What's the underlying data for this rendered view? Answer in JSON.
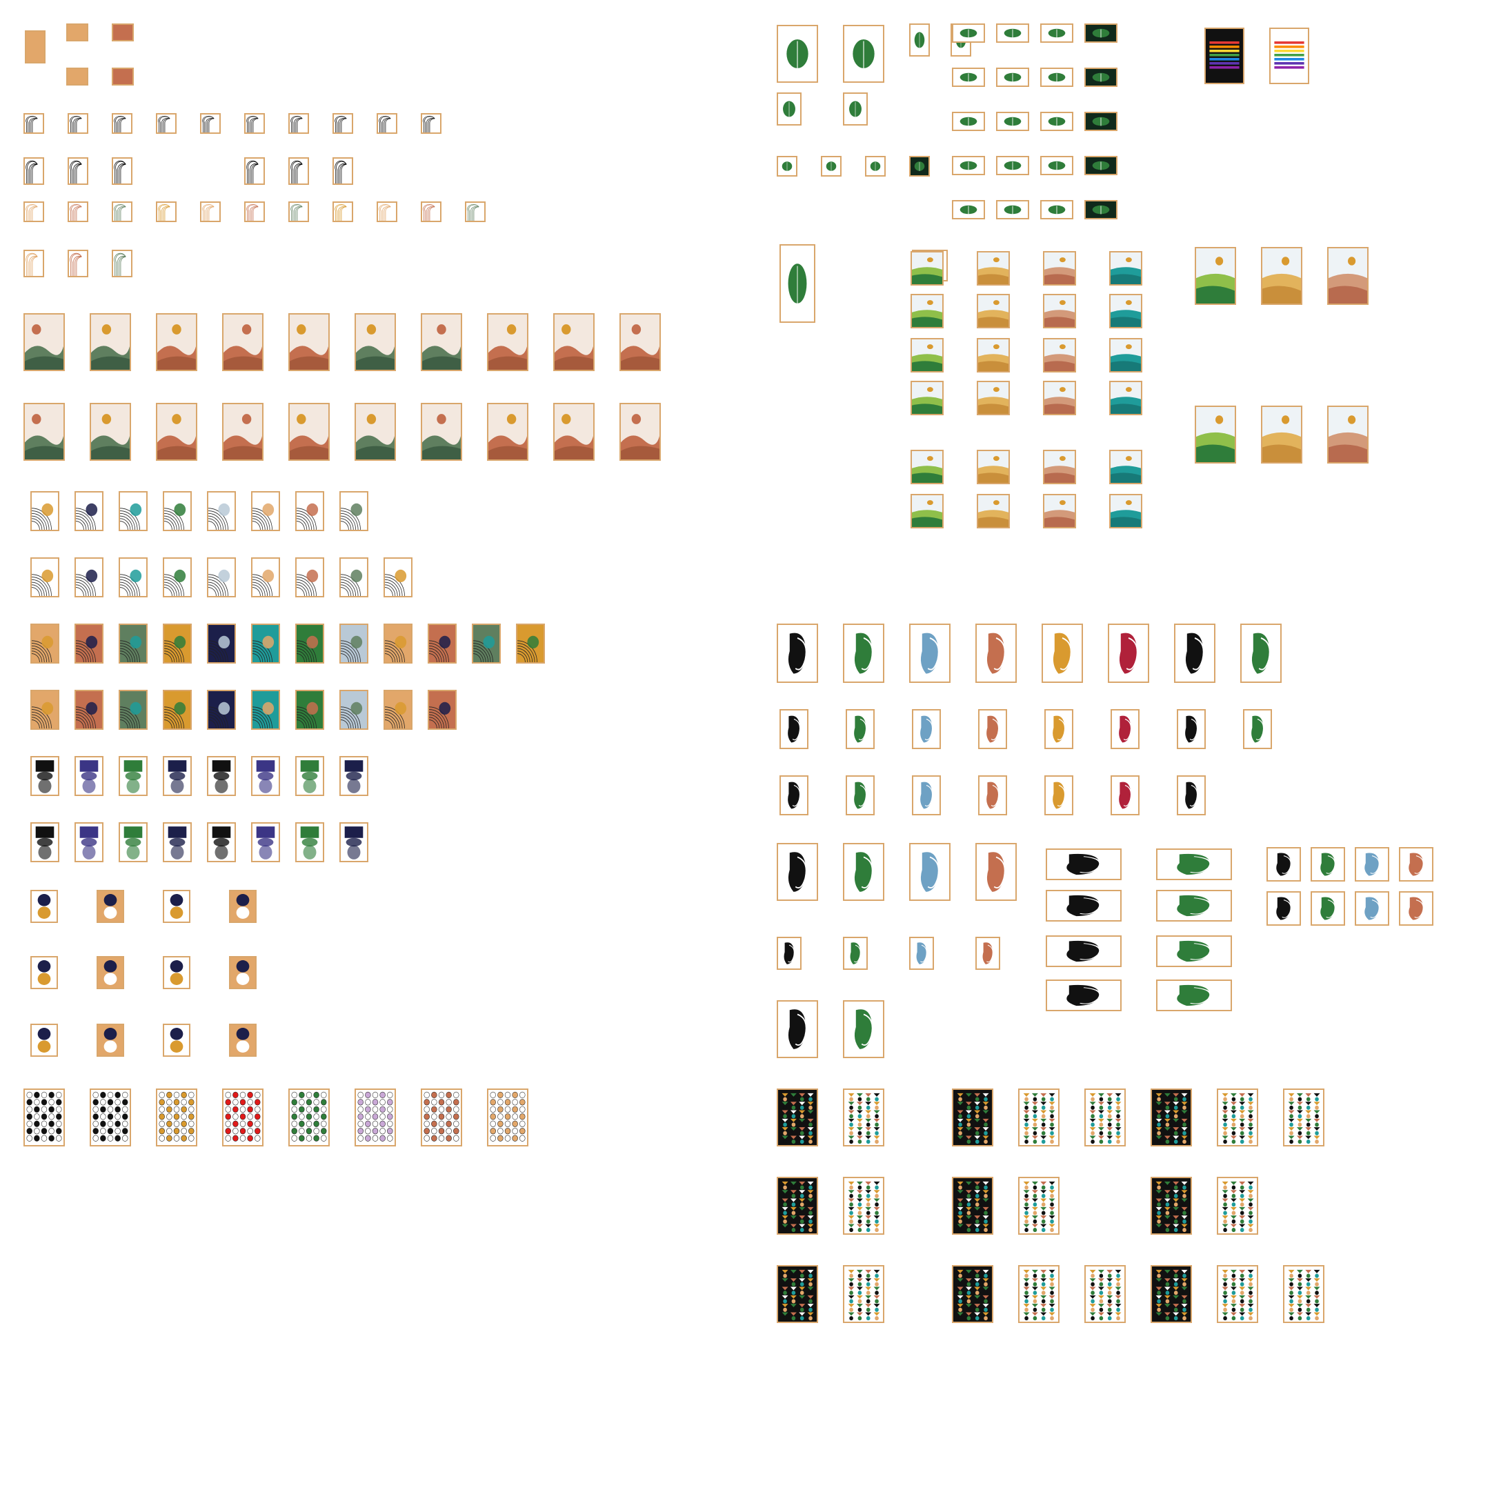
{
  "board": {
    "background": "#ffffff",
    "frame_color": "#d9a66b",
    "sections": [
      {
        "id": "misc-small",
        "motif": "small-frames",
        "count": 5
      },
      {
        "id": "line-art-bw",
        "motif": "bw-lines",
        "count": 17
      },
      {
        "id": "line-art-color",
        "motif": "color-lines",
        "count": 18
      },
      {
        "id": "boho-landscape",
        "motif": "sun-landscape",
        "count": 20
      },
      {
        "id": "rainbow-arcs",
        "motif": "arcs-sun",
        "count": 17
      },
      {
        "id": "rainbow-arcs-color",
        "motif": "color-arcs",
        "count": 21
      },
      {
        "id": "gradient-shapes",
        "motif": "gradient-shapes",
        "count": 16
      },
      {
        "id": "ball-shapes",
        "motif": "circles-block",
        "count": 12
      },
      {
        "id": "dot-patterns",
        "motif": "dot-grid",
        "count": 8
      },
      {
        "id": "botanical",
        "motif": "leaves",
        "count": 48
      },
      {
        "id": "horizon-landscape",
        "motif": "field-landscape",
        "count": 31
      },
      {
        "id": "face-line-art",
        "motif": "faces",
        "count": 42
      },
      {
        "id": "geometric-grid",
        "motif": "geo-pattern",
        "count": 30
      }
    ],
    "palette": {
      "sand": "#e2a76a",
      "terracotta": "#c46f4f",
      "sage": "#5f7f5f",
      "mustard": "#d99a2f",
      "navy": "#1c1f4a",
      "teal": "#1f9c9a",
      "green": "#2f7d3a",
      "sky": "#b9c9d6",
      "black": "#111111",
      "cream": "#faf7f0"
    }
  }
}
